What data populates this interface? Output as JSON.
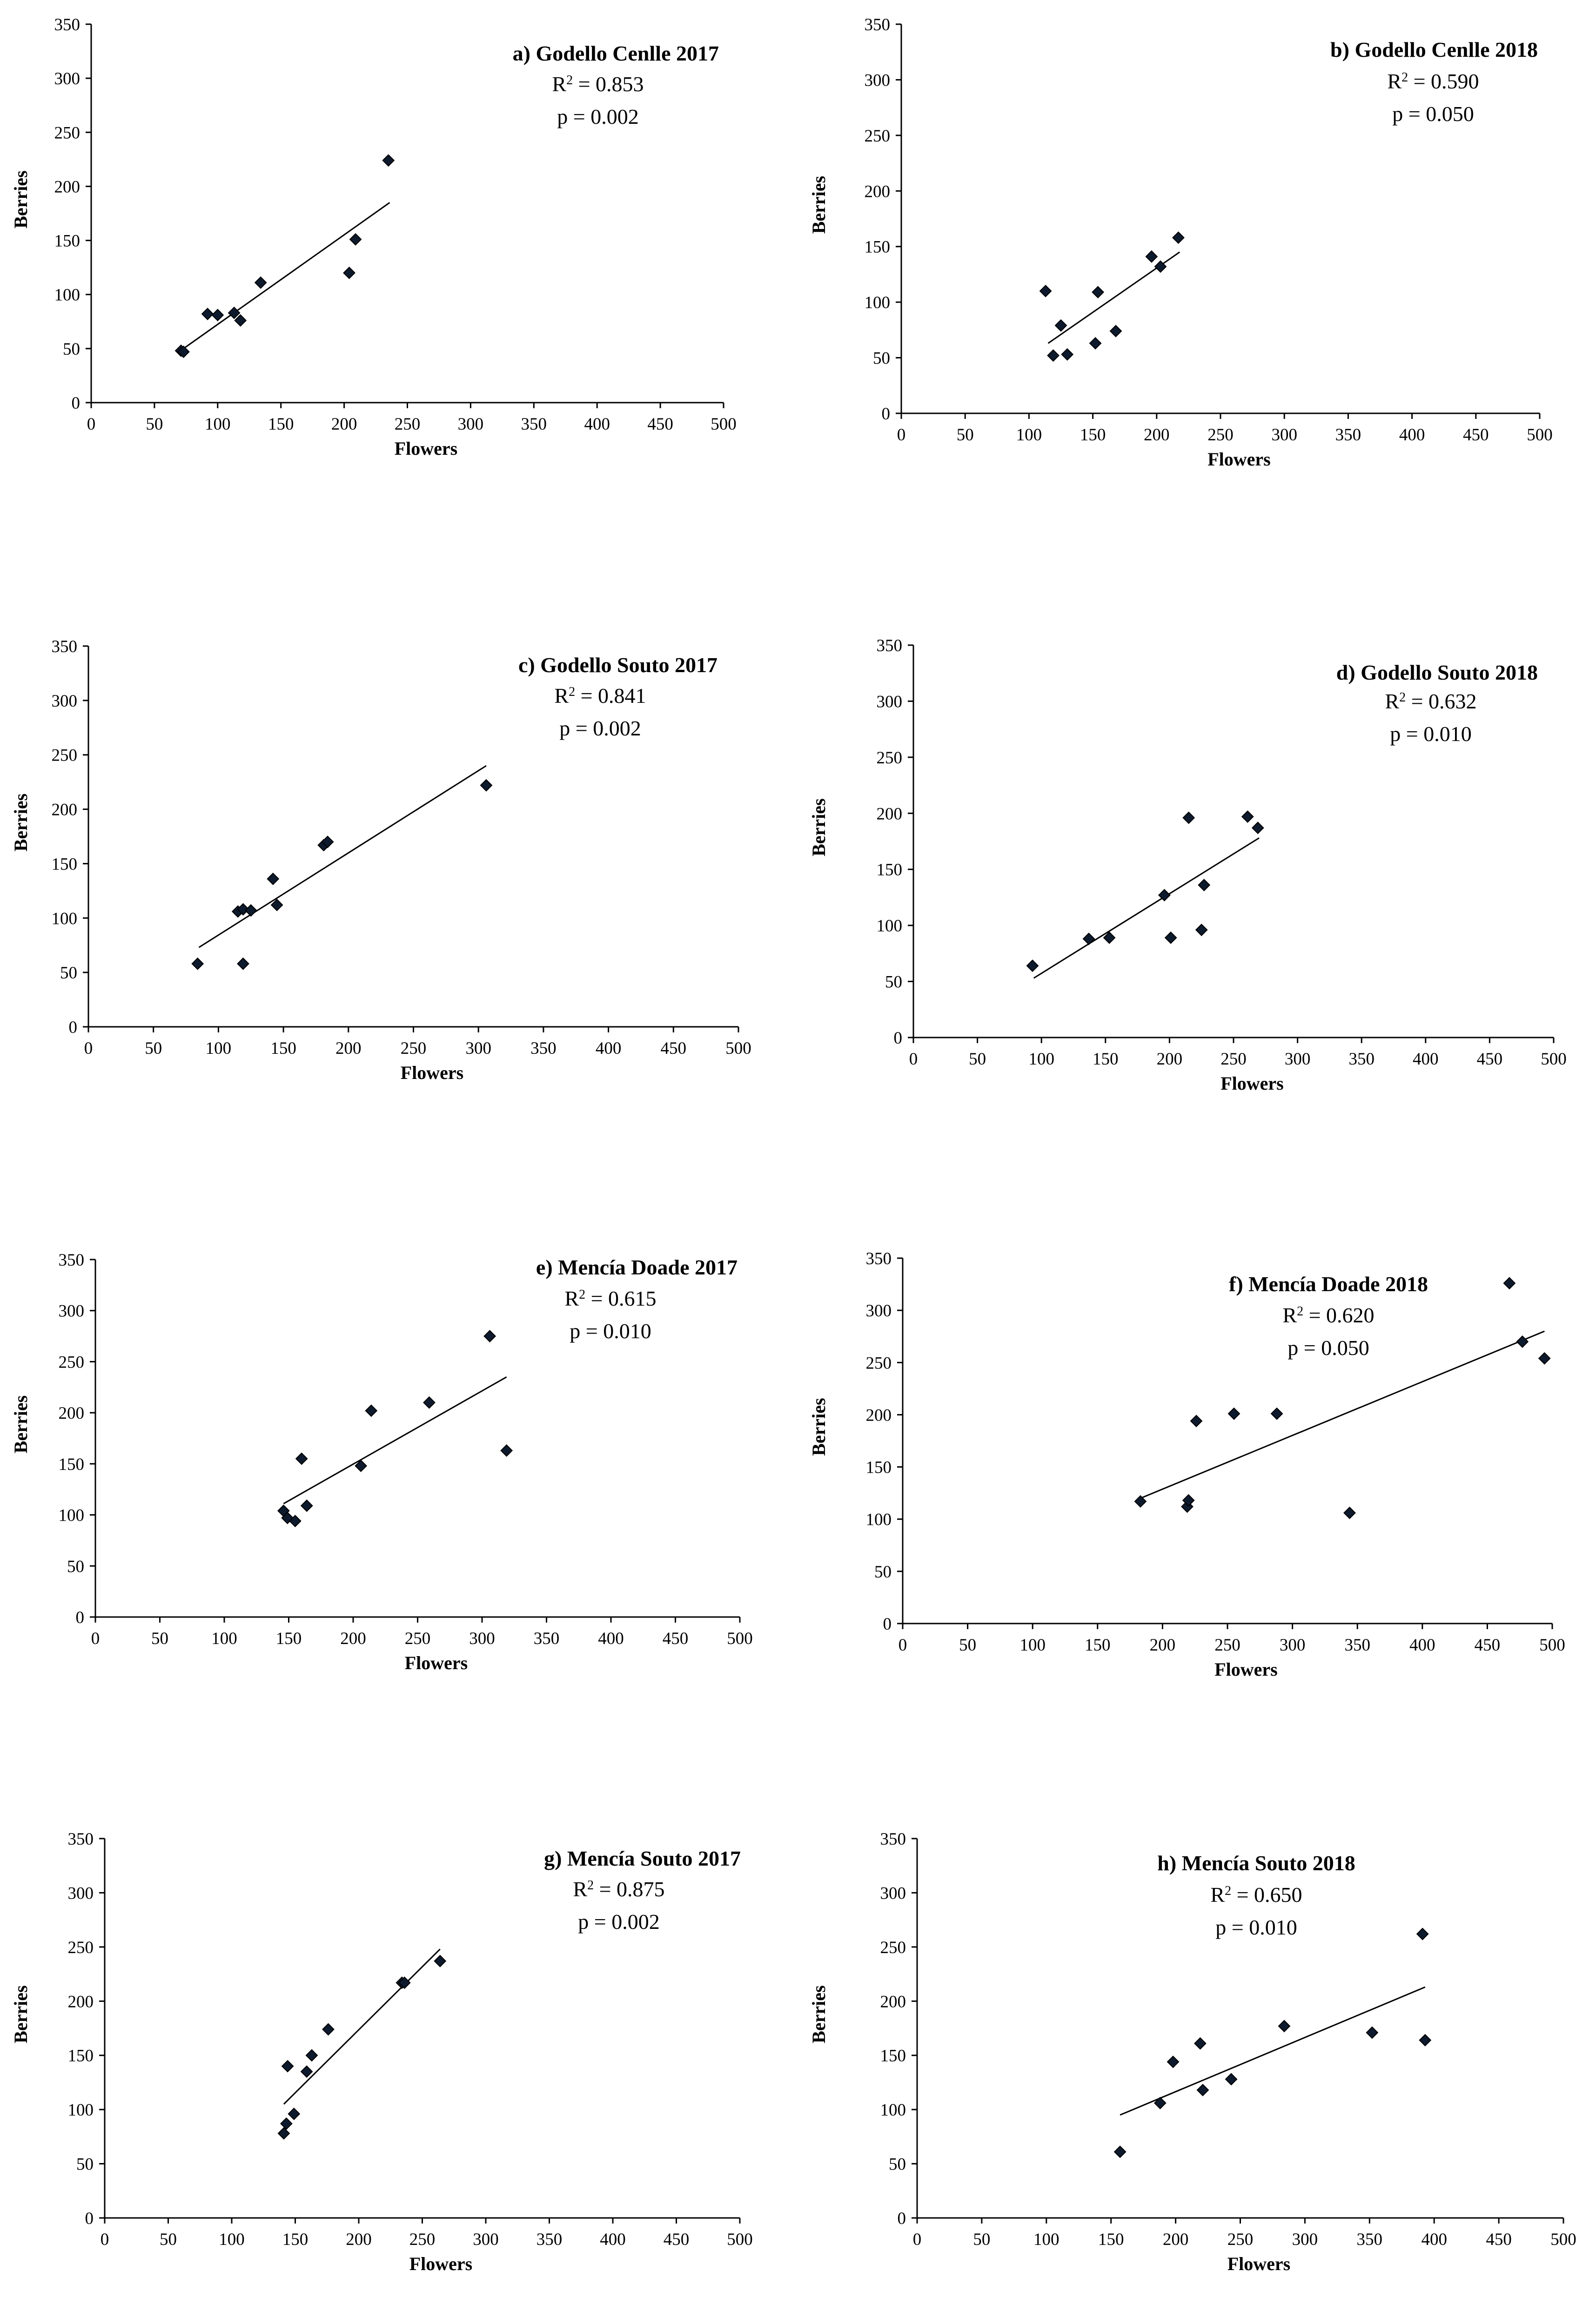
{
  "chart_data": [
    {
      "type": "scatter",
      "title": "a) Godello Cenlle 2017",
      "r2_label": "R",
      "r2_value": " = 0.853",
      "p_text": "p = 0.002",
      "xlabel": "Flowers",
      "ylabel": "Berries",
      "xlim": [
        0,
        500
      ],
      "ylim": [
        0,
        350
      ],
      "xticks": [
        0,
        50,
        100,
        150,
        200,
        250,
        300,
        350,
        400,
        450,
        500
      ],
      "yticks": [
        0,
        50,
        100,
        150,
        200,
        250,
        300,
        350
      ],
      "points": [
        [
          71,
          48
        ],
        [
          73,
          47
        ],
        [
          92,
          82
        ],
        [
          100,
          81
        ],
        [
          113,
          83
        ],
        [
          118,
          76
        ],
        [
          134,
          111
        ],
        [
          204,
          120
        ],
        [
          209,
          151
        ],
        [
          235,
          224
        ]
      ],
      "trendline": [
        [
          73,
          50
        ],
        [
          236,
          185
        ]
      ]
    },
    {
      "type": "scatter",
      "title": "b) Godello Cenlle 2018",
      "r2_label": "R",
      "r2_value": " = 0.590",
      "p_text": "p = 0.050",
      "xlabel": "Flowers",
      "ylabel": "Berries",
      "xlim": [
        0,
        500
      ],
      "ylim": [
        0,
        350
      ],
      "xticks": [
        0,
        50,
        100,
        150,
        200,
        250,
        300,
        350,
        400,
        450,
        500
      ],
      "yticks": [
        0,
        50,
        100,
        150,
        200,
        250,
        300,
        350
      ],
      "points": [
        [
          113,
          110
        ],
        [
          119,
          52
        ],
        [
          125,
          79
        ],
        [
          130,
          53
        ],
        [
          152,
          63
        ],
        [
          154,
          109
        ],
        [
          168,
          74
        ],
        [
          196,
          141
        ],
        [
          203,
          132
        ],
        [
          217,
          158
        ]
      ],
      "trendline": [
        [
          115,
          63
        ],
        [
          218,
          145
        ]
      ]
    },
    {
      "type": "scatter",
      "title": "c) Godello Souto 2017",
      "r2_label": "R",
      "r2_value": " = 0.841",
      "p_text": "p = 0.002",
      "xlabel": "Flowers",
      "ylabel": "Berries",
      "xlim": [
        0,
        500
      ],
      "ylim": [
        0,
        350
      ],
      "xticks": [
        0,
        50,
        100,
        150,
        200,
        250,
        300,
        350,
        400,
        450,
        500
      ],
      "yticks": [
        0,
        50,
        100,
        150,
        200,
        250,
        300,
        350
      ],
      "points": [
        [
          84,
          58
        ],
        [
          115,
          106
        ],
        [
          119,
          58
        ],
        [
          119,
          108
        ],
        [
          125,
          107
        ],
        [
          142,
          136
        ],
        [
          145,
          112
        ],
        [
          181,
          167
        ],
        [
          184,
          170
        ],
        [
          306,
          222
        ]
      ],
      "trendline": [
        [
          85,
          73
        ],
        [
          306,
          240
        ]
      ]
    },
    {
      "type": "scatter",
      "title": "d) Godello Souto 2018",
      "r2_label": "R",
      "r2_value": " = 0.632",
      "p_text": "p = 0.010",
      "xlabel": "Flowers",
      "ylabel": "Berries",
      "xlim": [
        0,
        500
      ],
      "ylim": [
        0,
        350
      ],
      "xticks": [
        0,
        50,
        100,
        150,
        200,
        250,
        300,
        350,
        400,
        450,
        500
      ],
      "yticks": [
        0,
        50,
        100,
        150,
        200,
        250,
        300,
        350
      ],
      "points": [
        [
          93,
          64
        ],
        [
          137,
          88
        ],
        [
          153,
          89
        ],
        [
          196,
          127
        ],
        [
          201,
          89
        ],
        [
          215,
          196
        ],
        [
          225,
          96
        ],
        [
          227,
          136
        ],
        [
          261,
          197
        ],
        [
          269,
          187
        ]
      ],
      "trendline": [
        [
          94,
          53
        ],
        [
          270,
          178
        ]
      ]
    },
    {
      "type": "scatter",
      "title": "e) Mencía Doade 2017",
      "r2_label": "R",
      "r2_value": " = 0.615",
      "p_text": "p = 0.010",
      "xlabel": "Flowers",
      "ylabel": "Berries",
      "xlim": [
        0,
        500
      ],
      "ylim": [
        0,
        350
      ],
      "xticks": [
        0,
        50,
        100,
        150,
        200,
        250,
        300,
        350,
        400,
        450,
        500
      ],
      "yticks": [
        0,
        50,
        100,
        150,
        200,
        250,
        300,
        350
      ],
      "points": [
        [
          146,
          104
        ],
        [
          149,
          97
        ],
        [
          155,
          94
        ],
        [
          160,
          155
        ],
        [
          164,
          109
        ],
        [
          206,
          148
        ],
        [
          214,
          202
        ],
        [
          259,
          210
        ],
        [
          306,
          275
        ],
        [
          319,
          163
        ]
      ],
      "trendline": [
        [
          146,
          111
        ],
        [
          319,
          235
        ]
      ]
    },
    {
      "type": "scatter",
      "title": "f) Mencía Doade 2018",
      "r2_label": "R",
      "r2_value": " = 0.620",
      "p_text": "p = 0.050",
      "xlabel": "Flowers",
      "ylabel": "Berries",
      "xlim": [
        0,
        500
      ],
      "ylim": [
        0,
        350
      ],
      "xticks": [
        0,
        50,
        100,
        150,
        200,
        250,
        300,
        350,
        400,
        450,
        500
      ],
      "yticks": [
        0,
        50,
        100,
        150,
        200,
        250,
        300,
        350
      ],
      "points": [
        [
          183,
          117
        ],
        [
          219,
          112
        ],
        [
          220,
          118
        ],
        [
          226,
          194
        ],
        [
          255,
          201
        ],
        [
          288,
          201
        ],
        [
          344,
          106
        ],
        [
          467,
          326
        ],
        [
          477,
          270
        ],
        [
          494,
          254
        ]
      ],
      "trendline": [
        [
          183,
          120
        ],
        [
          494,
          280
        ]
      ]
    },
    {
      "type": "scatter",
      "title": "g) Mencía Souto 2017",
      "r2_label": "R",
      "r2_value": " = 0.875",
      "p_text": "p = 0.002",
      "xlabel": "Flowers",
      "ylabel": "Berries",
      "xlim": [
        0,
        500
      ],
      "ylim": [
        0,
        350
      ],
      "xticks": [
        0,
        50,
        100,
        150,
        200,
        250,
        300,
        350,
        400,
        450,
        500
      ],
      "yticks": [
        0,
        50,
        100,
        150,
        200,
        250,
        300,
        350
      ],
      "points": [
        [
          141,
          78
        ],
        [
          143,
          87
        ],
        [
          144,
          140
        ],
        [
          149,
          96
        ],
        [
          159,
          135
        ],
        [
          163,
          150
        ],
        [
          176,
          174
        ],
        [
          234,
          217
        ],
        [
          236,
          217
        ],
        [
          264,
          237
        ]
      ],
      "trendline": [
        [
          141,
          105
        ],
        [
          264,
          248
        ]
      ]
    },
    {
      "type": "scatter",
      "title": "h) Mencía Souto 2018",
      "r2_label": "R",
      "r2_value": " = 0.650",
      "p_text": "p = 0.010",
      "xlabel": "Flowers",
      "ylabel": "Berries",
      "xlim": [
        0,
        500
      ],
      "ylim": [
        0,
        350
      ],
      "xticks": [
        0,
        50,
        100,
        150,
        200,
        250,
        300,
        350,
        400,
        450,
        500
      ],
      "yticks": [
        0,
        50,
        100,
        150,
        200,
        250,
        300,
        350
      ],
      "points": [
        [
          157,
          61
        ],
        [
          188,
          106
        ],
        [
          198,
          144
        ],
        [
          219,
          161
        ],
        [
          221,
          118
        ],
        [
          243,
          128
        ],
        [
          284,
          177
        ],
        [
          352,
          171
        ],
        [
          391,
          262
        ],
        [
          393,
          164
        ]
      ],
      "trendline": [
        [
          157,
          95
        ],
        [
          393,
          213
        ]
      ]
    }
  ]
}
